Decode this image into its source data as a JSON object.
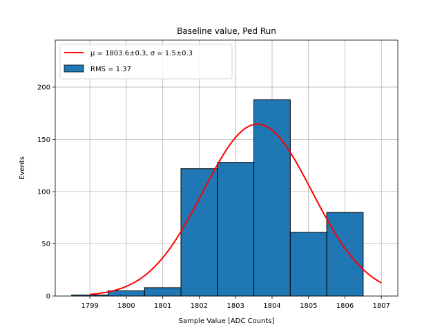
{
  "chart_data": {
    "type": "bar",
    "title": "Baseline value, Ped Run",
    "xlabel": "Sample Value [ADC Counts]",
    "ylabel": "Events",
    "xlim": [
      1798.05,
      1807.45
    ],
    "ylim": [
      0,
      245
    ],
    "grid": true,
    "legend_position": "top-left",
    "x_ticks": [
      1799,
      1800,
      1801,
      1802,
      1803,
      1804,
      1805,
      1806,
      1807
    ],
    "y_ticks": [
      0,
      50,
      100,
      150,
      200
    ],
    "bins": [
      {
        "left": 1798.5,
        "right": 1799.5,
        "count": 1
      },
      {
        "left": 1799.5,
        "right": 1800.5,
        "count": 5
      },
      {
        "left": 1800.5,
        "right": 1801.5,
        "count": 8
      },
      {
        "left": 1801.5,
        "right": 1802.5,
        "count": 122
      },
      {
        "left": 1802.5,
        "right": 1803.5,
        "count": 128
      },
      {
        "left": 1803.5,
        "right": 1804.5,
        "count": 188
      },
      {
        "left": 1804.5,
        "right": 1805.5,
        "count": 61
      },
      {
        "left": 1805.5,
        "right": 1806.5,
        "count": 80
      }
    ],
    "fit": {
      "mu": 1803.6,
      "sigma": 1.5,
      "amplitude": 164.6,
      "x_range": [
        1799,
        1807
      ]
    },
    "legend": {
      "fit_label": "μ = 1803.6±0.3, σ = 1.5±0.3",
      "hist_label": "RMS = 1.37"
    },
    "colors": {
      "bar_fill": "#1f77b4",
      "bar_edge": "#000000",
      "fit_line": "#ff0000",
      "grid": "#b0b0b0"
    }
  }
}
